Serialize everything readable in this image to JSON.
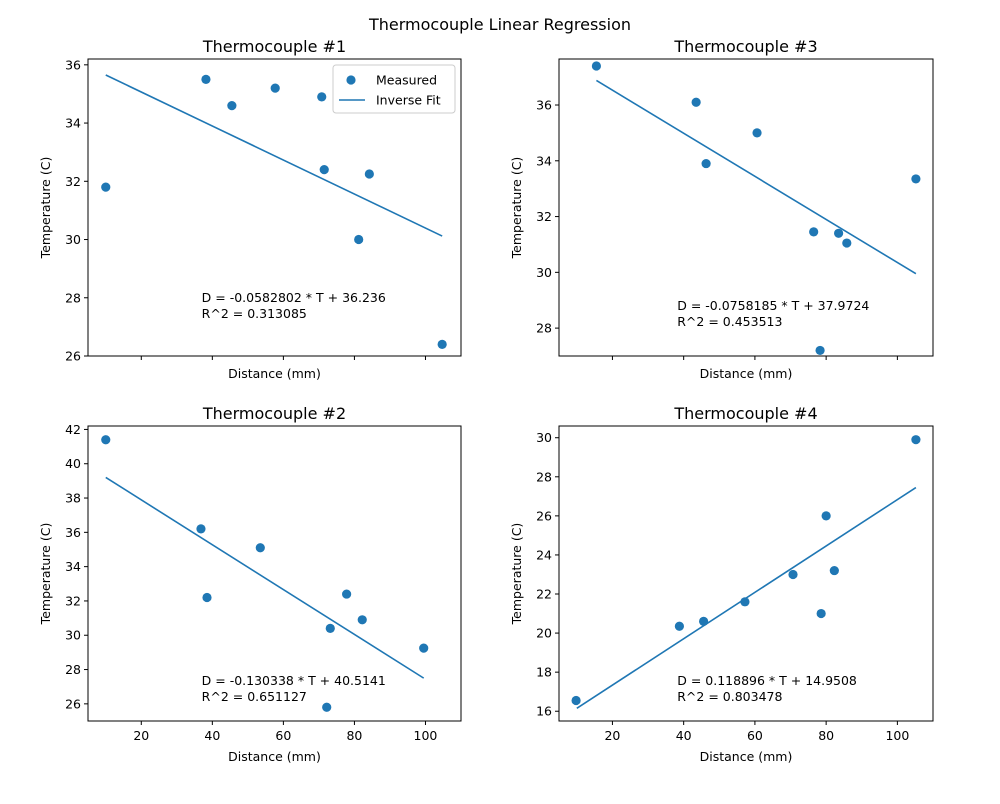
{
  "figure_title": "Thermocouple Linear Regression",
  "colors": {
    "series": "#1f77b4",
    "frame": "#000000",
    "legend_border": "#cccccc"
  },
  "legend": {
    "measured": "Measured",
    "fit": "Inverse Fit"
  },
  "chart_data": [
    {
      "type": "scatter",
      "title": "Thermocouple #1",
      "xlabel": "Distance (mm)",
      "ylabel": "Temperature (C)",
      "xlim": [
        5,
        110
      ],
      "ylim": [
        26,
        36.2
      ],
      "show_xtick_labels": false,
      "xticks": [
        20,
        40,
        60,
        80,
        100
      ],
      "yticks": [
        26,
        28,
        30,
        32,
        34,
        36
      ],
      "ytick_labels": [
        "26",
        "28",
        "30",
        "32",
        "34",
        "36"
      ],
      "legend_position": "upper right",
      "points": [
        [
          10,
          31.8
        ],
        [
          38.2,
          35.5
        ],
        [
          45.5,
          34.6
        ],
        [
          57.7,
          35.2
        ],
        [
          70.8,
          34.9
        ],
        [
          71.5,
          32.4
        ],
        [
          81.2,
          30.0
        ],
        [
          84.2,
          32.25
        ],
        [
          104.7,
          26.4
        ]
      ],
      "fit": {
        "x": [
          10,
          104.7
        ],
        "y": [
          35.65,
          30.12
        ]
      },
      "annotation": [
        "D = -0.0582802 * T + 36.236",
        "R^2 = 0.313085"
      ],
      "annotation_at": [
        37,
        27.85
      ]
    },
    {
      "type": "scatter",
      "title": "Thermocouple #3",
      "xlabel": "Distance (mm)",
      "ylabel": "Temperature (C)",
      "xlim": [
        5,
        110
      ],
      "ylim": [
        27,
        37.65
      ],
      "show_xtick_labels": false,
      "xticks": [
        20,
        40,
        60,
        80,
        100
      ],
      "yticks": [
        28,
        30,
        32,
        34,
        36
      ],
      "ytick_labels": [
        "28",
        "30",
        "32",
        "34",
        "36"
      ],
      "points": [
        [
          15.5,
          37.4
        ],
        [
          43.5,
          36.1
        ],
        [
          46.3,
          33.9
        ],
        [
          60.6,
          35.0
        ],
        [
          76.5,
          31.45
        ],
        [
          83.5,
          31.4
        ],
        [
          85.8,
          31.05
        ],
        [
          78.3,
          27.2
        ],
        [
          105.2,
          33.35
        ]
      ],
      "fit": {
        "x": [
          15.5,
          105.2
        ],
        "y": [
          36.88,
          29.95
        ]
      },
      "annotation": [
        "D = -0.0758185 * T + 37.9724",
        "R^2 = 0.453513"
      ],
      "annotation_at": [
        38.2,
        28.65
      ]
    },
    {
      "type": "scatter",
      "title": "Thermocouple #2",
      "xlabel": "Distance (mm)",
      "ylabel": "Temperature (C)",
      "xlim": [
        5,
        110
      ],
      "ylim": [
        25,
        42.2
      ],
      "show_xtick_labels": true,
      "xticks": [
        20,
        40,
        60,
        80,
        100
      ],
      "xtick_labels": [
        "20",
        "40",
        "60",
        "80",
        "100"
      ],
      "yticks": [
        26,
        28,
        30,
        32,
        34,
        36,
        38,
        40,
        42
      ],
      "ytick_labels": [
        "26",
        "28",
        "30",
        "32",
        "34",
        "36",
        "38",
        "40",
        "42"
      ],
      "points": [
        [
          10,
          41.4
        ],
        [
          36.8,
          36.2
        ],
        [
          38.5,
          32.2
        ],
        [
          53.5,
          35.1
        ],
        [
          72.2,
          25.8
        ],
        [
          73.2,
          30.4
        ],
        [
          77.8,
          32.4
        ],
        [
          82.2,
          30.9
        ],
        [
          99.5,
          29.25
        ]
      ],
      "fit": {
        "x": [
          10,
          99.5
        ],
        "y": [
          39.2,
          27.5
        ]
      },
      "annotation": [
        "D = -0.130338 * T + 40.5141",
        "R^2 = 0.651127"
      ],
      "annotation_at": [
        37,
        27.1
      ]
    },
    {
      "type": "scatter",
      "title": "Thermocouple #4",
      "xlabel": "Distance (mm)",
      "ylabel": "Temperature (C)",
      "xlim": [
        5,
        110
      ],
      "ylim": [
        15.5,
        30.6
      ],
      "show_xtick_labels": true,
      "xticks": [
        20,
        40,
        60,
        80,
        100
      ],
      "xtick_labels": [
        "20",
        "40",
        "60",
        "80",
        "100"
      ],
      "yticks": [
        16,
        18,
        20,
        22,
        24,
        26,
        28,
        30
      ],
      "ytick_labels": [
        "16",
        "18",
        "20",
        "22",
        "24",
        "26",
        "28",
        "30"
      ],
      "points": [
        [
          9.8,
          16.55
        ],
        [
          38.8,
          20.35
        ],
        [
          45.6,
          20.6
        ],
        [
          57.2,
          21.6
        ],
        [
          70.7,
          23.0
        ],
        [
          78.6,
          21.0
        ],
        [
          80.0,
          26.0
        ],
        [
          82.3,
          23.2
        ],
        [
          105.2,
          29.9
        ]
      ],
      "fit": {
        "x": [
          10,
          105.2
        ],
        "y": [
          16.15,
          27.45
        ]
      },
      "annotation": [
        "D = 0.118896 * T + 14.9508",
        "R^2 = 0.803478"
      ],
      "annotation_at": [
        38.2,
        17.35
      ]
    }
  ]
}
